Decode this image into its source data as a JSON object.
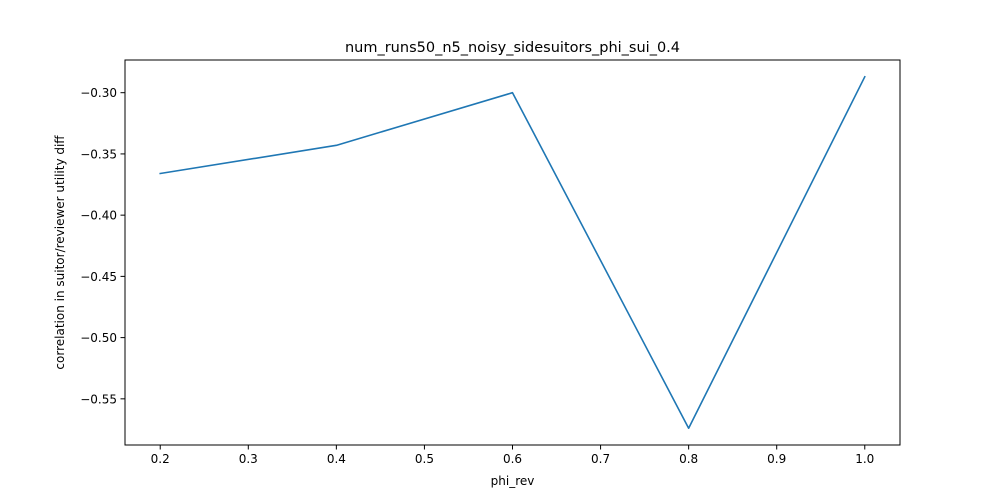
{
  "chart_data": {
    "type": "line",
    "title": "num_runs50_n5_noisy_sidesuitors_phi_sui_0.4",
    "xlabel": "phi_rev",
    "ylabel": "correlation in suitor/reviewer utility diff",
    "x": [
      0.2,
      0.4,
      0.6,
      0.8,
      1.0
    ],
    "series": [
      {
        "values": [
          -0.366,
          -0.343,
          -0.3,
          -0.574,
          -0.287
        ],
        "color": "#1f77b4"
      }
    ],
    "xlim": [
      0.16,
      1.04
    ],
    "ylim": [
      -0.5877,
      -0.2733
    ],
    "xticks": [
      0.2,
      0.3,
      0.4,
      0.5,
      0.6,
      0.7,
      0.8,
      0.9,
      1.0
    ],
    "xtick_labels": [
      "0.2",
      "0.3",
      "0.4",
      "0.5",
      "0.6",
      "0.7",
      "0.8",
      "0.9",
      "1.0"
    ],
    "yticks": [
      -0.3,
      -0.35,
      -0.4,
      -0.45,
      -0.5,
      -0.55
    ],
    "ytick_labels": [
      "−0.30",
      "−0.35",
      "−0.40",
      "−0.45",
      "−0.50",
      "−0.55"
    ],
    "grid": false,
    "legend": false
  }
}
